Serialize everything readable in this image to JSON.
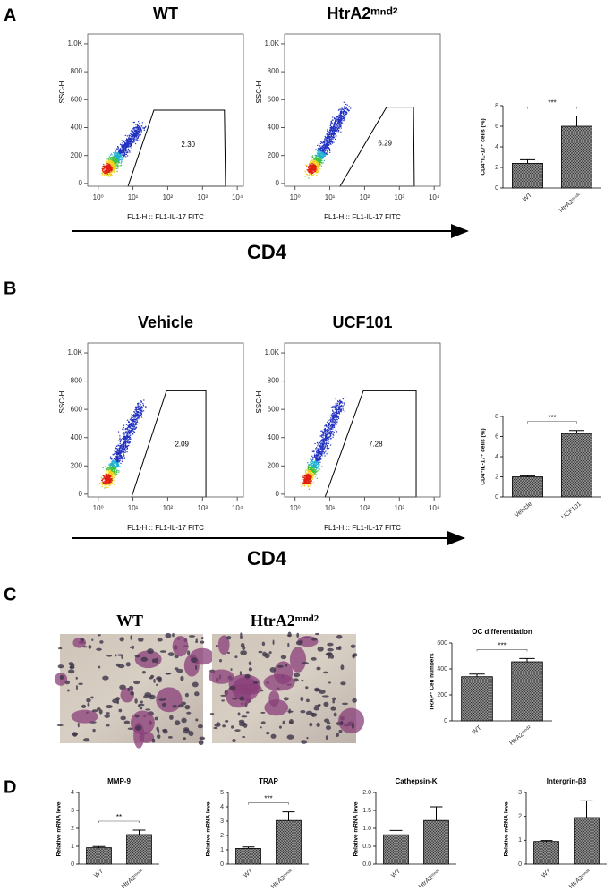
{
  "panel_labels": [
    "A",
    "B",
    "C",
    "D"
  ],
  "arrow_labels": [
    "CD4",
    "CD4"
  ],
  "images": [
    {
      "title": "WT"
    },
    {
      "title": "HtrA2ᵐⁿᵈ²"
    }
  ],
  "chart_data": [
    {
      "type": "flow",
      "title": "WT",
      "xlabel": "FL1-H :: FL1-IL-17 FITC",
      "ylabel": "SSC-H",
      "annotation": "2.30",
      "log_x": true,
      "xlim": [
        0.5,
        15000
      ],
      "xticks": [
        {
          "value": 1,
          "label": "10⁰"
        },
        {
          "value": 10,
          "label": "10¹"
        },
        {
          "value": 100,
          "label": "10²"
        },
        {
          "value": 1000,
          "label": "10³"
        },
        {
          "value": 10000,
          "label": "10⁴"
        }
      ],
      "ylim": [
        -20,
        1070
      ],
      "yticks": [
        0,
        200,
        400,
        600,
        800,
        {
          "value": 1000,
          "label": "1.0K"
        }
      ]
    },
    {
      "type": "flow",
      "title": "HtrA2ᵐⁿᵈ²",
      "xlabel": "FL1-H :: FL1-IL-17 FITC",
      "ylabel": "SSC-H",
      "annotation": "6.29",
      "log_x": true,
      "xlim": [
        0.5,
        15000
      ],
      "xticks": [
        {
          "value": 1,
          "label": "10⁰"
        },
        {
          "value": 10,
          "label": "10¹"
        },
        {
          "value": 100,
          "label": "10²"
        },
        {
          "value": 1000,
          "label": "10³"
        },
        {
          "value": 10000,
          "label": "10⁴"
        }
      ],
      "ylim": [
        -20,
        1070
      ],
      "yticks": [
        0,
        200,
        400,
        600,
        800,
        {
          "value": 1000,
          "label": "1.0K"
        }
      ]
    },
    {
      "type": "bar",
      "ylabel": "CD4⁺IL-17⁺ cells (%)",
      "categories": [
        "WT",
        "HtrA2ᵐⁿᵈ²"
      ],
      "values": [
        2.4,
        6.0
      ],
      "errors": [
        0.35,
        1.0
      ],
      "significance": "***",
      "color": "#8c8c8c",
      "ylim": [
        0,
        8
      ],
      "yticks": [
        0,
        2,
        4,
        6,
        8
      ]
    },
    {
      "type": "flow",
      "title": "Vehicle",
      "xlabel": "FL1-H :: FL1-IL-17 FITC",
      "ylabel": "SSC-H",
      "annotation": "2.09",
      "log_x": true,
      "xlim": [
        0.5,
        15000
      ],
      "xticks": [
        {
          "value": 1,
          "label": "10⁰"
        },
        {
          "value": 10,
          "label": "10¹"
        },
        {
          "value": 100,
          "label": "10²"
        },
        {
          "value": 1000,
          "label": "10³"
        },
        {
          "value": 10000,
          "label": "10⁴"
        }
      ],
      "ylim": [
        -20,
        1070
      ],
      "yticks": [
        0,
        200,
        400,
        600,
        800,
        {
          "value": 1000,
          "label": "1.0K"
        }
      ]
    },
    {
      "type": "flow",
      "title": "UCF101",
      "xlabel": "FL1-H :: FL1-IL-17 FITC",
      "ylabel": "SSC-H",
      "annotation": "7.28",
      "log_x": true,
      "xlim": [
        0.5,
        15000
      ],
      "xticks": [
        {
          "value": 1,
          "label": "10⁰"
        },
        {
          "value": 10,
          "label": "10¹"
        },
        {
          "value": 100,
          "label": "10²"
        },
        {
          "value": 1000,
          "label": "10³"
        },
        {
          "value": 10000,
          "label": "10⁴"
        }
      ],
      "ylim": [
        -20,
        1070
      ],
      "yticks": [
        0,
        200,
        400,
        600,
        800,
        {
          "value": 1000,
          "label": "1.0K"
        }
      ]
    },
    {
      "type": "bar",
      "ylabel": "CD4⁺IL-17⁺ cells (%)",
      "categories": [
        "Vehicle",
        "UCF101"
      ],
      "values": [
        2.0,
        6.3
      ],
      "errors": [
        0.1,
        0.3
      ],
      "significance": "***",
      "color": "#8c8c8c",
      "ylim": [
        0,
        8
      ],
      "yticks": [
        0,
        2,
        4,
        6,
        8
      ]
    },
    {
      "type": "bar",
      "title": "OC differentiation",
      "ylabel": "TRAP⁺ Cell numbers",
      "categories": [
        "WT",
        "HtrA2ᵐⁿᵈ²"
      ],
      "values": [
        340,
        455
      ],
      "errors": [
        20,
        25
      ],
      "significance": "***",
      "color": "#8c8c8c",
      "ylim": [
        0,
        600
      ],
      "yticks": [
        0,
        200,
        400,
        600
      ]
    },
    {
      "type": "bar",
      "title": "MMP-9",
      "ylabel": "Relative mRNA level",
      "categories": [
        "WT",
        "HtrA2ᵐⁿᵈ²"
      ],
      "values": [
        0.92,
        1.65
      ],
      "errors": [
        0.07,
        0.25
      ],
      "significance": "**",
      "color": "#8c8c8c",
      "ylim": [
        0,
        4
      ],
      "yticks": [
        0,
        1,
        2,
        3,
        4
      ]
    },
    {
      "type": "bar",
      "title": "TRAP",
      "ylabel": "Relative mRNA level",
      "categories": [
        "WT",
        "HtrA2ᵐⁿᵈ²"
      ],
      "values": [
        1.1,
        3.05
      ],
      "errors": [
        0.1,
        0.6
      ],
      "significance": "***",
      "color": "#8c8c8c",
      "ylim": [
        0,
        5
      ],
      "yticks": [
        0,
        1,
        2,
        3,
        4,
        5
      ]
    },
    {
      "type": "bar",
      "title": "Cathepsin-K",
      "ylabel": "Relative mRNA level",
      "categories": [
        "WT",
        "HtrA2ᵐⁿᵈ²"
      ],
      "values": [
        0.82,
        1.22
      ],
      "errors": [
        0.12,
        0.38
      ],
      "color": "#8c8c8c",
      "ylim": [
        0,
        2
      ],
      "yticks": [
        {
          "value": 0,
          "label": "0.0"
        },
        0.5,
        {
          "value": 1,
          "label": "1.0"
        },
        1.5,
        {
          "value": 2,
          "label": "2.0"
        }
      ]
    },
    {
      "type": "bar",
      "title": "Intergrin-β3",
      "ylabel": "Relative mRNA level",
      "categories": [
        "WT",
        "HtrA2ᵐⁿᵈ²"
      ],
      "values": [
        0.95,
        1.95
      ],
      "errors": [
        0.04,
        0.7
      ],
      "color": "#8c8c8c",
      "ylim": [
        0,
        3
      ],
      "yticks": [
        0,
        1,
        2,
        3
      ]
    }
  ]
}
